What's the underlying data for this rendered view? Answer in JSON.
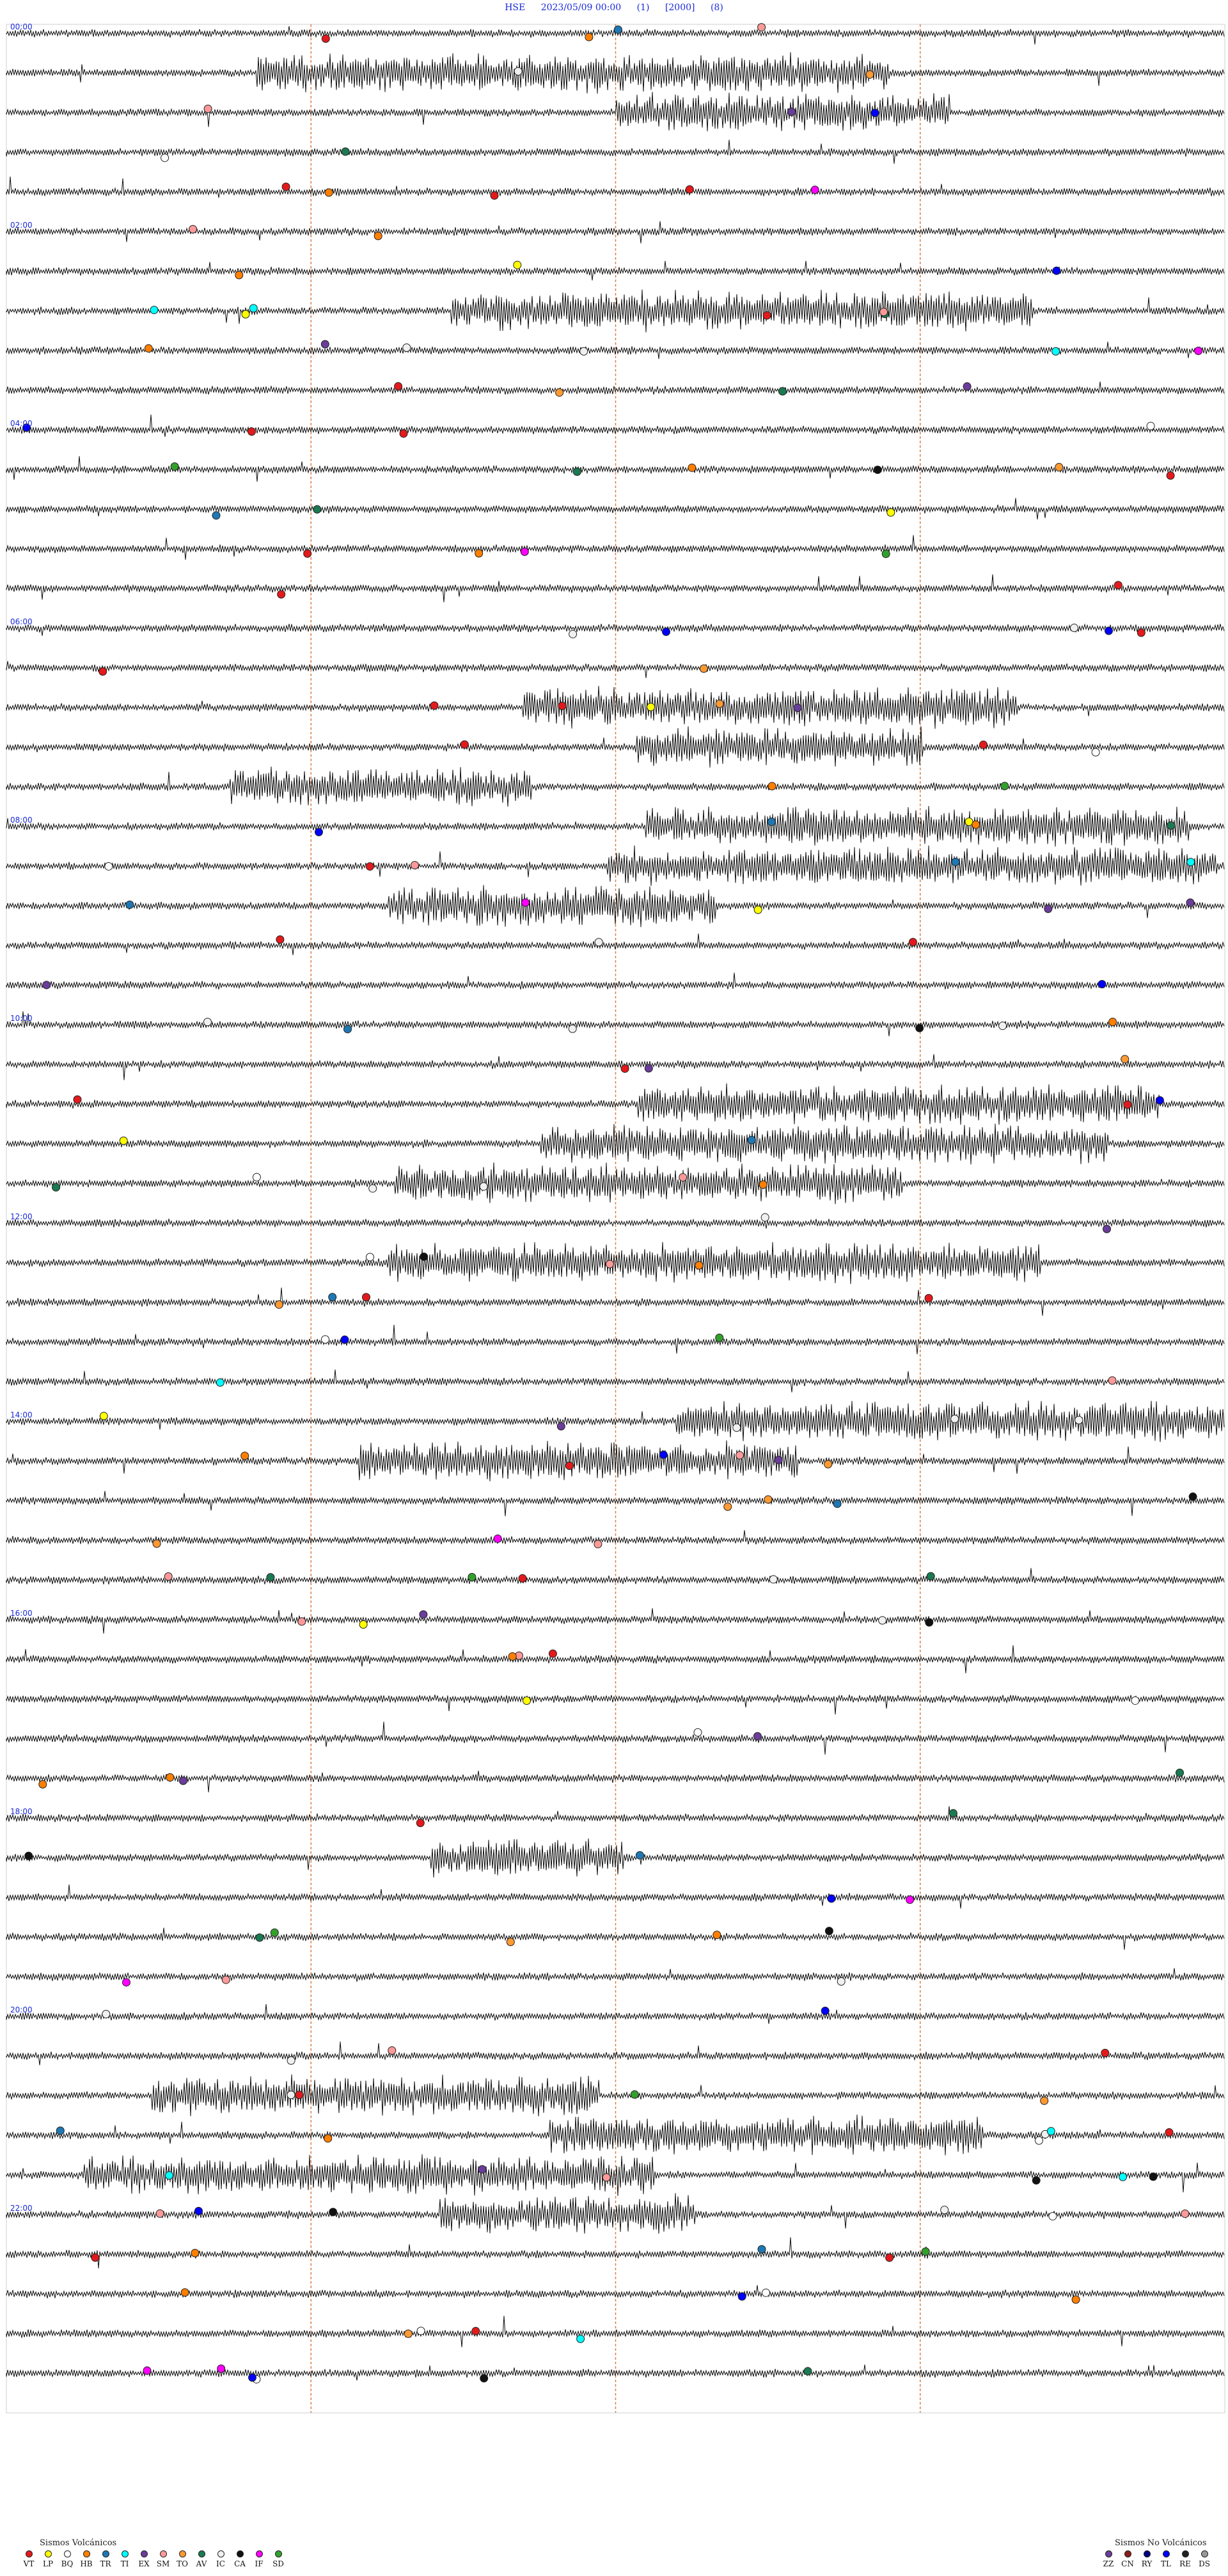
{
  "header": {
    "station": "HSE",
    "datetime": "2023/05/09 00:00",
    "param1": "(1)",
    "param2": "[2000]",
    "param3": "(8)"
  },
  "time_labels": [
    "00:00",
    "",
    "",
    "",
    "",
    "02:00",
    "",
    "",
    "",
    "",
    "04:00",
    "",
    "",
    "",
    "",
    "06:00",
    "",
    "",
    "",
    "",
    "08:00",
    "",
    "",
    "",
    "",
    "10:00",
    "",
    "",
    "",
    "",
    "12:00",
    "",
    "",
    "",
    "",
    "14:00",
    "",
    "",
    "",
    "",
    "16:00",
    "",
    "",
    "",
    "",
    "18:00",
    "",
    "",
    "",
    "",
    "20:00",
    "",
    "",
    "",
    "",
    "22:00",
    "",
    "",
    "",
    "",
    ""
  ],
  "legend_volcanic": {
    "title": "Sismos Volcánicos",
    "items": [
      {
        "code": "VT",
        "color": "#e31a1c"
      },
      {
        "code": "LP",
        "color": "#ffff00"
      },
      {
        "code": "BQ",
        "color": "#ffffff"
      },
      {
        "code": "HB",
        "color": "#ff7f00"
      },
      {
        "code": "TR",
        "color": "#1f78b4"
      },
      {
        "code": "TI",
        "color": "#00ffff"
      },
      {
        "code": "EX",
        "color": "#6a3d9a"
      },
      {
        "code": "SM",
        "color": "#fb9a99"
      },
      {
        "code": "TO",
        "color": "#ff9933"
      },
      {
        "code": "AV",
        "color": "#1b7a52"
      },
      {
        "code": "IC",
        "color": "#f0f0f0"
      },
      {
        "code": "CA",
        "color": "#111111"
      },
      {
        "code": "IF",
        "color": "#ff00ff"
      },
      {
        "code": "SD",
        "color": "#33a02c"
      }
    ]
  },
  "legend_nonvolcanic": {
    "title": "Sismos No Volcánicos",
    "items": [
      {
        "code": "ZZ",
        "color": "#6a3d9a"
      },
      {
        "code": "CN",
        "color": "#8b1a1a"
      },
      {
        "code": "RY",
        "color": "#000080"
      },
      {
        "code": "TL",
        "color": "#0000ff"
      },
      {
        "code": "RE",
        "color": "#222222"
      },
      {
        "code": "DS",
        "color": "#999999"
      }
    ]
  },
  "chart_data": {
    "type": "line",
    "traces": 60,
    "minutes_per_trace": 24,
    "start": "2023/05/09 00:00",
    "hour_marker_minutes": [
      6,
      12,
      18
    ],
    "colors": {
      "trace": "#111111",
      "hour_marker": "#d9824a",
      "label": "#1a2ad8"
    },
    "activity": {
      "burst_traces": [
        1,
        2,
        7,
        17,
        18,
        19,
        20,
        21,
        22,
        27,
        28,
        29,
        31,
        35,
        36,
        46,
        52,
        53,
        54,
        55
      ],
      "level": "high"
    }
  }
}
